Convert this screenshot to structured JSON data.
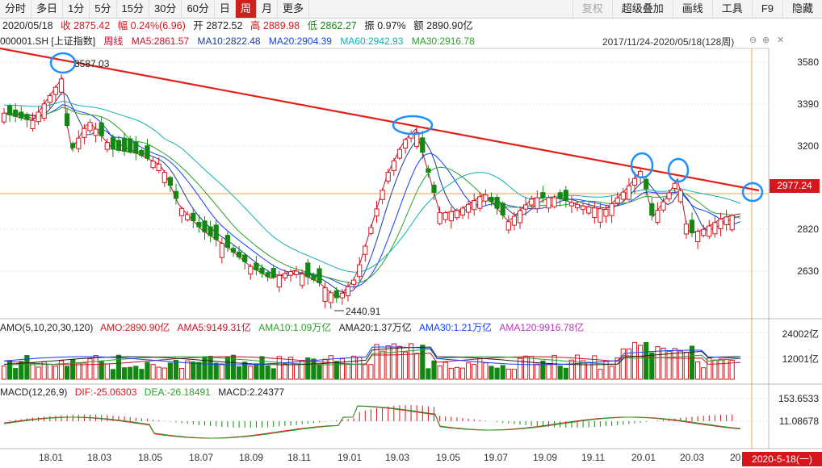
{
  "toolbar": {
    "items": [
      "分时",
      "多日",
      "1分",
      "5分",
      "15分",
      "30分",
      "60分",
      "日",
      "周",
      "月",
      "更多"
    ],
    "active_index": 8,
    "right_items": [
      "复权",
      "超级叠加",
      "画线",
      "工具",
      "F9",
      "隐藏"
    ]
  },
  "quote": {
    "date": "2020/05/18",
    "close": "收 2875.42",
    "change": "幅 0.24%(6.96)",
    "open": "开 2872.52",
    "high": "高 2889.98",
    "low": "低 2862.27",
    "amplitude": "振 0.97%",
    "amount": "额 2890.90亿"
  },
  "ma_row": {
    "symbol": "000001.SH [上证指数]",
    "period": "周线",
    "ma5": "MA5:2861.57",
    "ma10": "MA10:2822.48",
    "ma20": "MA20:2904.39",
    "ma60": "MA60:2942.93",
    "ma30": "MA30:2916.78"
  },
  "range_label": "2017/11/24-2020/05/18(128周)",
  "range_controls": [
    "⊖",
    "⊕",
    "✕"
  ],
  "price_axis": [
    "3580",
    "3390",
    "3200",
    "2820",
    "2630"
  ],
  "price_tag": "2977.24",
  "annotations": {
    "high": "3587.03",
    "low": "2440.91"
  },
  "amo": {
    "title": "AMO(5,10,20,30,120)",
    "amo": "AMO:2890.90亿",
    "ma5": "AMA5:9149.31亿",
    "ma10": "AMA10:1.09万亿",
    "ma20": "AMA20:1.37万亿",
    "ma30": "AMA30:1.21万亿",
    "ma120": "AMA120:9916.78亿",
    "axis": [
      "24002亿",
      "12001亿"
    ]
  },
  "macd": {
    "title": "MACD(12,26,9)",
    "dif": "DIF:-25.06303",
    "dea": "DEA:-26.18491",
    "macd": "MACD:2.24377",
    "axis": [
      "153.6533",
      "11.08678"
    ]
  },
  "date_axis": [
    "18.01",
    "18.03",
    "18.05",
    "18.07",
    "18.09",
    "18.11",
    "19.01",
    "19.03",
    "19.05",
    "19.07",
    "19.09",
    "19.11",
    "20.01",
    "20.03",
    "20"
  ],
  "date_tag": "2020-5-18(一)",
  "colors": {
    "up": "#d6161c",
    "down": "#128812",
    "trendline": "#e0201a",
    "highlight": "#1e90ff",
    "ma5": "#c8102e",
    "ma10": "#1a3d9a",
    "ma20": "#1040ff",
    "ma30": "#2aa02a",
    "ma60": "#10b0b0"
  }
}
